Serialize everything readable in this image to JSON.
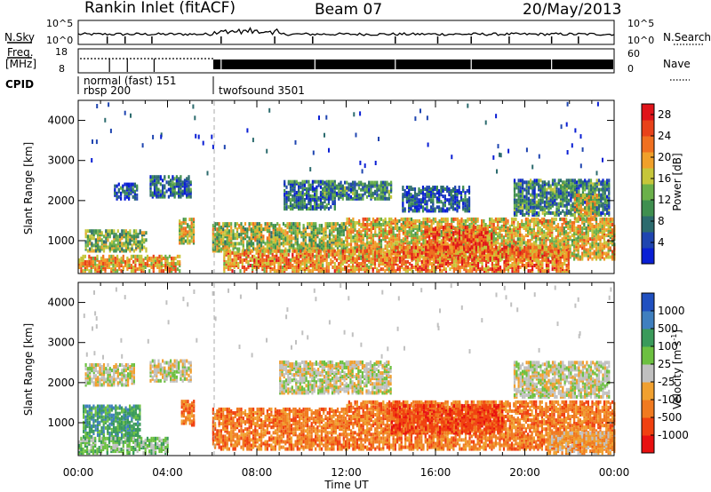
{
  "header": {
    "station": "Rankin Inlet (fitACF)",
    "beam": "Beam 07",
    "date": "20/May/2013"
  },
  "nsky": {
    "label": "N.Sky",
    "tick_top": "10^5",
    "tick_bottom": "10^0"
  },
  "nsearch": {
    "label": "N.Search",
    "tick_top": "10^5",
    "tick_bottom": "10^0"
  },
  "freq": {
    "label_top": "Freq.",
    "label_unit": "[MHz]",
    "tick_top": "18",
    "tick_bottom": "8"
  },
  "nave": {
    "label": "Nave",
    "tick_top": "60",
    "tick_bottom": "0"
  },
  "cpid": {
    "label": "CPID",
    "modes": [
      {
        "name": "normal (fast)",
        "id": "151"
      },
      {
        "name": "rbsp",
        "id": "200"
      },
      {
        "name": "twofsound",
        "id": "3501"
      }
    ]
  },
  "xaxis": {
    "label": "Time UT",
    "ticks": [
      "00:00",
      "04:00",
      "08:00",
      "12:00",
      "16:00",
      "20:00",
      "00:00"
    ]
  },
  "chart_data": [
    {
      "type": "heatmap",
      "panel": "power",
      "ylabel": "Slant Range [km]",
      "yticks": [
        1000,
        2000,
        3000,
        4000
      ],
      "ylim": [
        180,
        4500
      ],
      "xlim": [
        0,
        24
      ],
      "colorbar": {
        "label": "Power [dB]",
        "ticks": [
          "4",
          "8",
          "12",
          "16",
          "20",
          "24",
          "28"
        ],
        "range": [
          0,
          30
        ],
        "colors": [
          "#0a1fd4",
          "#1f45b0",
          "#2c6b6e",
          "#3f8f4f",
          "#6bb04a",
          "#c6c63a",
          "#f0a02a",
          "#f07020",
          "#e8421a",
          "#e0141a"
        ]
      },
      "features": [
        {
          "t0": 1.6,
          "t1": 2.6,
          "r0": 2000,
          "r1": 2400,
          "level": 0.2
        },
        {
          "t0": 3.2,
          "t1": 5.0,
          "r0": 2050,
          "r1": 2550,
          "level": 0.22
        },
        {
          "t0": 9.2,
          "t1": 11.5,
          "r0": 1750,
          "r1": 2450,
          "level": 0.25
        },
        {
          "t0": 11.0,
          "t1": 14.0,
          "r0": 2000,
          "r1": 2450,
          "level": 0.3
        },
        {
          "t0": 14.5,
          "t1": 17.5,
          "r0": 1700,
          "r1": 2300,
          "level": 0.15
        },
        {
          "t0": 19.5,
          "t1": 23.8,
          "r0": 1600,
          "r1": 2500,
          "level": 0.3
        },
        {
          "t0": 22.2,
          "t1": 23.2,
          "r0": 1500,
          "r1": 2100,
          "level": 0.55
        },
        {
          "t0": 0.3,
          "t1": 3.0,
          "r0": 700,
          "r1": 1200,
          "level": 0.45
        },
        {
          "t0": 4.5,
          "t1": 5.2,
          "r0": 900,
          "r1": 1500,
          "level": 0.55
        },
        {
          "t0": 6.0,
          "t1": 12.0,
          "r0": 700,
          "r1": 1400,
          "level": 0.5
        },
        {
          "t0": 12.0,
          "t1": 24.0,
          "r0": 500,
          "r1": 1500,
          "level": 0.6
        },
        {
          "t0": 15.5,
          "t1": 18.5,
          "r0": 700,
          "r1": 1300,
          "level": 0.8
        },
        {
          "t0": 0.0,
          "t1": 4.5,
          "r0": 200,
          "r1": 600,
          "level": 0.65
        },
        {
          "t0": 6.5,
          "t1": 14.0,
          "r0": 200,
          "r1": 700,
          "level": 0.7
        },
        {
          "t0": 14.0,
          "t1": 22.0,
          "r0": 200,
          "r1": 800,
          "level": 0.75
        }
      ]
    },
    {
      "type": "heatmap",
      "panel": "velocity",
      "ylabel": "Slant Range [km]",
      "yticks": [
        1000,
        2000,
        3000,
        4000
      ],
      "ylim": [
        180,
        4500
      ],
      "xlim": [
        0,
        24
      ],
      "colorbar": {
        "label": "Velocity [m s^-1]",
        "ticks": [
          "1000",
          "500",
          "100",
          "25",
          "-25",
          "-100",
          "-500",
          "-1000"
        ],
        "colors": [
          "#2050c0",
          "#3f7fbf",
          "#3a9a5a",
          "#6cc040",
          "#c0c0c0",
          "#f0a030",
          "#f07a20",
          "#f04010",
          "#e81010"
        ]
      },
      "features": [
        {
          "t0": 0.3,
          "t1": 2.5,
          "r0": 1900,
          "r1": 2400,
          "level": 4
        },
        {
          "t0": 3.2,
          "t1": 5.0,
          "r0": 2000,
          "r1": 2500,
          "level": 4
        },
        {
          "t0": 9.0,
          "t1": 14.0,
          "r0": 1700,
          "r1": 2500,
          "level": 4
        },
        {
          "t0": 19.5,
          "t1": 23.8,
          "r0": 1600,
          "r1": 2500,
          "level": 4
        },
        {
          "t0": 0.2,
          "t1": 2.8,
          "r0": 600,
          "r1": 1400,
          "level": 2
        },
        {
          "t0": 0.0,
          "t1": 4.0,
          "r0": 200,
          "r1": 600,
          "level": 3
        },
        {
          "t0": 4.6,
          "t1": 5.2,
          "r0": 900,
          "r1": 1500,
          "level": 6
        },
        {
          "t0": 6.0,
          "t1": 12.0,
          "r0": 300,
          "r1": 1300,
          "level": 6
        },
        {
          "t0": 12.0,
          "t1": 24.0,
          "r0": 300,
          "r1": 1500,
          "level": 6
        },
        {
          "t0": 14.0,
          "t1": 19.0,
          "r0": 700,
          "r1": 1400,
          "level": 7
        },
        {
          "t0": 21.0,
          "t1": 24.0,
          "r0": 200,
          "r1": 700,
          "level": 5
        }
      ]
    }
  ]
}
